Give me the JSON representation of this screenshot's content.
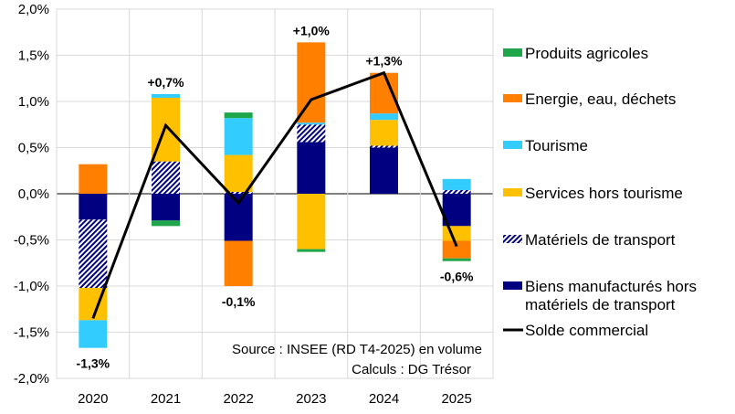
{
  "chart_data": {
    "type": "bar",
    "stacked": true,
    "categories": [
      "2020",
      "2021",
      "2022",
      "2023",
      "2024",
      "2025"
    ],
    "ylim": [
      -2.0,
      2.0
    ],
    "yticks": [
      2.0,
      1.5,
      1.0,
      0.5,
      0.0,
      -0.5,
      -1.0,
      -1.5,
      -2.0
    ],
    "ytick_labels": [
      "2,0%",
      "1,5%",
      "1,0%",
      "0,5%",
      "0,0%",
      "-0,5%",
      "-1,0%",
      "-1,5%",
      "-2,0%"
    ],
    "grid": true,
    "legend_placement": "right",
    "series": [
      {
        "name": "Biens manufacturés hors matériels de transport",
        "color": "#000080",
        "pattern": "solid",
        "values": [
          -0.28,
          -0.29,
          -0.51,
          0.56,
          0.5,
          -0.35
        ]
      },
      {
        "name": "Matériels de transport",
        "color": "#000080",
        "pattern": "hatched",
        "values": [
          -0.74,
          0.35,
          0.02,
          0.19,
          0.02,
          0.04
        ]
      },
      {
        "name": "Services hors tourisme",
        "color": "#FFC000",
        "pattern": "solid",
        "values": [
          -0.35,
          0.69,
          0.4,
          -0.6,
          0.28,
          -0.16
        ]
      },
      {
        "name": "Tourisme",
        "color": "#33CCFF",
        "pattern": "solid",
        "values": [
          -0.3,
          0.04,
          0.4,
          0.02,
          0.07,
          0.12
        ]
      },
      {
        "name": "Energie, eau, déchets",
        "color": "#FF7F00",
        "pattern": "solid",
        "values": [
          0.32,
          0,
          -0.49,
          0.87,
          0.44,
          -0.19
        ]
      },
      {
        "name": "Produits agricoles",
        "color": "#1FA64A",
        "pattern": "solid",
        "values": [
          0,
          -0.06,
          0.06,
          -0.03,
          0,
          -0.03
        ]
      }
    ],
    "line": {
      "name": "Solde commercial",
      "color": "#000000",
      "values": [
        -1.35,
        0.74,
        -0.1,
        1.02,
        1.31,
        -0.57
      ]
    },
    "data_labels": [
      {
        "text": "-1,3%",
        "placement": "below"
      },
      {
        "text": "+0,7%",
        "placement": "above"
      },
      {
        "text": "-0,1%",
        "placement": "below"
      },
      {
        "text": "+1,0%",
        "placement": "above"
      },
      {
        "text": "+1,3%",
        "placement": "above"
      },
      {
        "text": "-0,6%",
        "placement": "below"
      }
    ],
    "legend_order": [
      "Produits agricoles",
      "Energie, eau, déchets",
      "Tourisme",
      "Services hors tourisme",
      "Matériels de transport",
      "Biens manufacturés hors matériels de transport",
      "Solde commercial"
    ],
    "annotations": [
      "Source : INSEE (RD T4-2025) en volume",
      "Calculs : DG Trésor"
    ]
  }
}
